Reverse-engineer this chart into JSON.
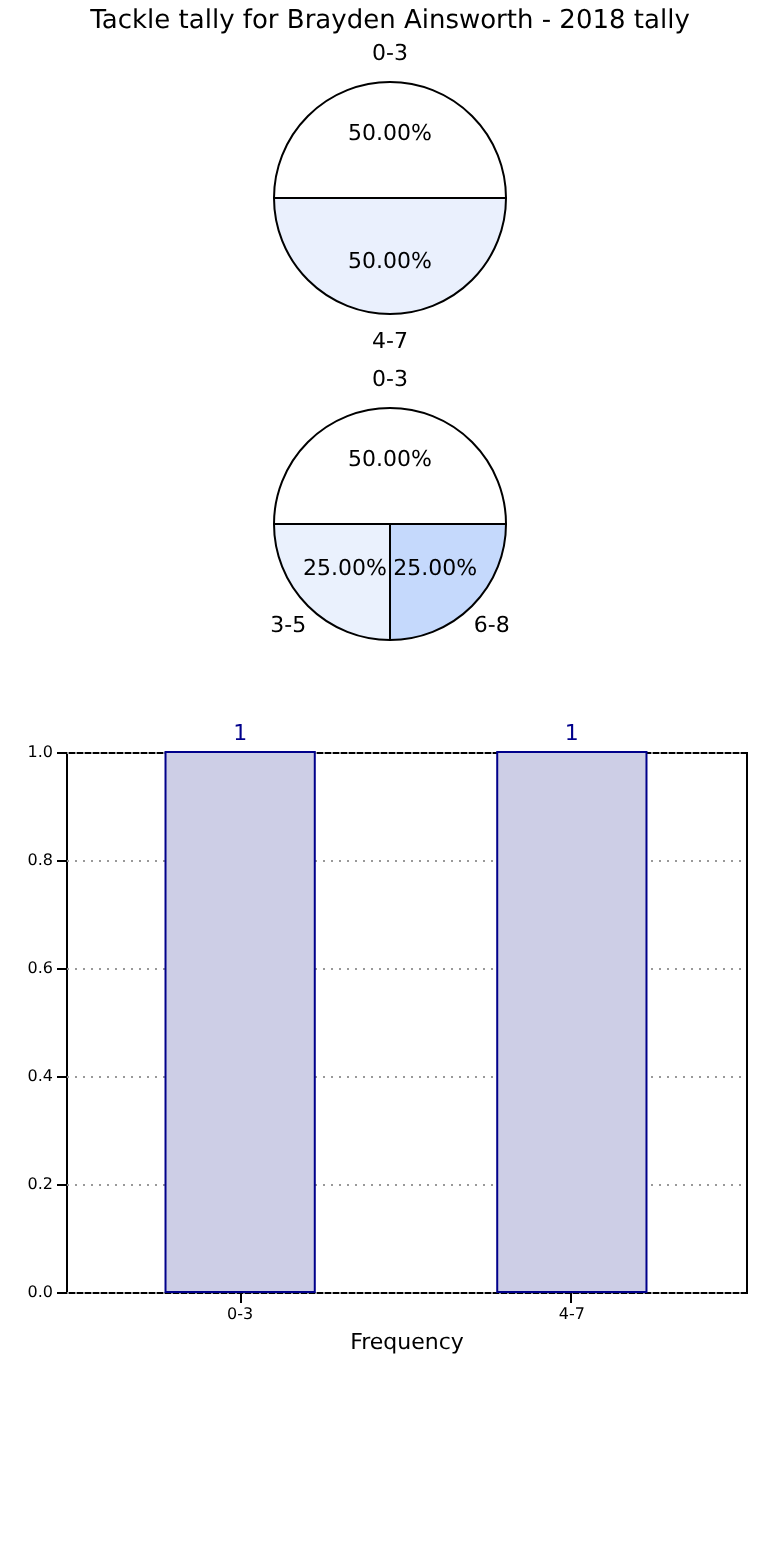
{
  "chart_data": [
    {
      "type": "pie",
      "title": "Tackle tally for Brayden Ainsworth - 2018 tally",
      "categories": [
        "0-3",
        "4-7"
      ],
      "values": [
        50,
        50
      ],
      "colors": [
        "#ffffff",
        "#eaf0fd"
      ],
      "value_labels": [
        "50.00%",
        "50.00%"
      ]
    },
    {
      "type": "pie",
      "categories": [
        "0-3",
        "3-5",
        "6-8"
      ],
      "values": [
        50,
        25,
        25
      ],
      "colors": [
        "#ffffff",
        "#eaf1fd",
        "#c5d9fc"
      ],
      "value_labels": [
        "50.00%",
        "25.00%",
        "25.00%"
      ]
    },
    {
      "type": "bar",
      "categories": [
        "0-3",
        "4-7"
      ],
      "values": [
        1,
        1
      ],
      "color": "#cdcee6",
      "xlabel": "Frequency",
      "ylim": [
        0,
        1
      ],
      "yticks": [
        {
          "value": 0,
          "label": "0.0"
        },
        0.2,
        0.4,
        0.6,
        0.8,
        {
          "value": 1,
          "label": "1.0"
        }
      ],
      "grid": true,
      "data_labels": true
    }
  ]
}
